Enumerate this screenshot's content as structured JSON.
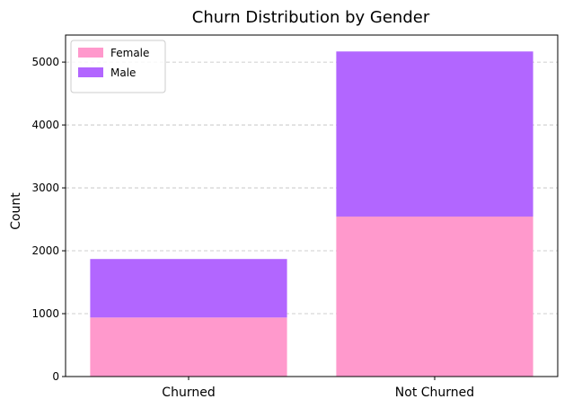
{
  "chart_data": {
    "type": "bar",
    "stacked": true,
    "title": "Churn Distribution by Gender",
    "xlabel": "",
    "ylabel": "Count",
    "categories": [
      "Churned",
      "Not Churned"
    ],
    "series": [
      {
        "name": "Female",
        "values": [
          939,
          2544
        ],
        "color": "#ff99cc"
      },
      {
        "name": "Male",
        "values": [
          930,
          2625
        ],
        "color": "#b266ff"
      }
    ],
    "ylim": [
      0,
      5430
    ],
    "yticks": [
      0,
      1000,
      2000,
      3000,
      4000,
      5000
    ],
    "grid": "y-dashed",
    "legend_position": "top-left"
  }
}
